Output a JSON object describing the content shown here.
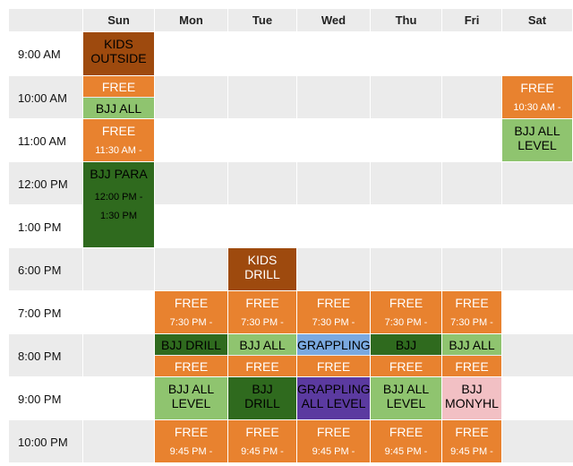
{
  "days": [
    "Sun",
    "Mon",
    "Tue",
    "Wed",
    "Thu",
    "Fri",
    "Sat"
  ],
  "times": [
    "9:00 AM",
    "10:00 AM",
    "11:00 AM",
    "12:00 PM",
    "1:00 PM",
    "6:00 PM",
    "7:00 PM",
    "8:00 PM",
    "9:00 PM",
    "10:00 PM"
  ],
  "colors": {
    "orange": "#e8822f",
    "brown": "#9e4a0e",
    "light_green": "#8fc46f",
    "dark_green": "#2f6a1e",
    "blue": "#7aa9e0",
    "purple": "#5b3aa0",
    "pink": "#f2c0c4",
    "header_gray": "#ebebeb"
  },
  "events": [
    {
      "id": "sun-kids-outside",
      "day": "Sun",
      "start": "9:00 AM",
      "end": "10:00 AM",
      "title": "KIDS\nOUTSIDE",
      "sub": "",
      "color": "brown",
      "text": "dark"
    },
    {
      "id": "sun-free-10",
      "day": "Sun",
      "start": "10:00 AM",
      "end": "10:30 AM",
      "title": "FREE",
      "sub": "",
      "color": "orange",
      "text": "light"
    },
    {
      "id": "sun-bjj-all",
      "day": "Sun",
      "start": "10:30 AM",
      "end": "11:00 AM",
      "title": "BJJ ALL",
      "sub": "",
      "color": "light_green",
      "text": "dark"
    },
    {
      "id": "sun-free-11",
      "day": "Sun",
      "start": "11:00 AM",
      "end": "12:00 PM",
      "title": "FREE",
      "sub": "11:30 AM -",
      "color": "orange",
      "text": "light"
    },
    {
      "id": "sun-bjj-para",
      "day": "Sun",
      "start": "12:00 PM",
      "end": "6:00 PM",
      "title": "BJJ PARA",
      "sub": "12:00 PM -\n1:30 PM",
      "color": "dark_green",
      "text": "dark"
    },
    {
      "id": "sat-free-10",
      "day": "Sat",
      "start": "10:00 AM",
      "end": "11:00 AM",
      "title": "FREE",
      "sub": "10:30 AM -",
      "color": "orange",
      "text": "light"
    },
    {
      "id": "sat-bjj-all-level",
      "day": "Sat",
      "start": "11:00 AM",
      "end": "12:00 PM",
      "title": "BJJ ALL\nLEVEL",
      "sub": "",
      "color": "light_green",
      "text": "dark"
    },
    {
      "id": "tue-kids-drill",
      "day": "Tue",
      "start": "6:00 PM",
      "end": "7:00 PM",
      "title": "KIDS\nDRILL",
      "sub": "",
      "color": "brown",
      "text": "light"
    },
    {
      "id": "mon-free-7",
      "day": "Mon",
      "start": "7:00 PM",
      "end": "8:00 PM",
      "title": "FREE",
      "sub": "7:30 PM -",
      "color": "orange",
      "text": "light"
    },
    {
      "id": "tue-free-7",
      "day": "Tue",
      "start": "7:00 PM",
      "end": "8:00 PM",
      "title": "FREE",
      "sub": "7:30 PM -",
      "color": "orange",
      "text": "light"
    },
    {
      "id": "wed-free-7",
      "day": "Wed",
      "start": "7:00 PM",
      "end": "8:00 PM",
      "title": "FREE",
      "sub": "7:30 PM -",
      "color": "orange",
      "text": "light"
    },
    {
      "id": "thu-free-7",
      "day": "Thu",
      "start": "7:00 PM",
      "end": "8:00 PM",
      "title": "FREE",
      "sub": "7:30 PM -",
      "color": "orange",
      "text": "light"
    },
    {
      "id": "fri-free-7",
      "day": "Fri",
      "start": "7:00 PM",
      "end": "8:00 PM",
      "title": "FREE",
      "sub": "7:30 PM -",
      "color": "orange",
      "text": "light"
    },
    {
      "id": "mon-bjj-drill",
      "day": "Mon",
      "start": "8:00 PM",
      "end": "8:30 PM",
      "title": "BJJ DRILL",
      "sub": "",
      "color": "dark_green",
      "text": "dark"
    },
    {
      "id": "tue-bjj-all",
      "day": "Tue",
      "start": "8:00 PM",
      "end": "8:30 PM",
      "title": "BJJ ALL",
      "sub": "",
      "color": "light_green",
      "text": "dark"
    },
    {
      "id": "wed-grappling",
      "day": "Wed",
      "start": "8:00 PM",
      "end": "8:30 PM",
      "title": "GRAPPLING",
      "sub": "",
      "color": "blue",
      "text": "dark"
    },
    {
      "id": "thu-bjj",
      "day": "Thu",
      "start": "8:00 PM",
      "end": "8:30 PM",
      "title": "BJJ",
      "sub": "",
      "color": "dark_green",
      "text": "dark"
    },
    {
      "id": "fri-bjj-all",
      "day": "Fri",
      "start": "8:00 PM",
      "end": "8:30 PM",
      "title": "BJJ ALL",
      "sub": "",
      "color": "light_green",
      "text": "dark"
    },
    {
      "id": "mon-free-830",
      "day": "Mon",
      "start": "8:30 PM",
      "end": "9:00 PM",
      "title": "FREE",
      "sub": "",
      "color": "orange",
      "text": "light"
    },
    {
      "id": "tue-free-830",
      "day": "Tue",
      "start": "8:30 PM",
      "end": "9:00 PM",
      "title": "FREE",
      "sub": "",
      "color": "orange",
      "text": "light"
    },
    {
      "id": "wed-free-830",
      "day": "Wed",
      "start": "8:30 PM",
      "end": "9:00 PM",
      "title": "FREE",
      "sub": "",
      "color": "orange",
      "text": "light"
    },
    {
      "id": "thu-free-830",
      "day": "Thu",
      "start": "8:30 PM",
      "end": "9:00 PM",
      "title": "FREE",
      "sub": "",
      "color": "orange",
      "text": "light"
    },
    {
      "id": "fri-free-830",
      "day": "Fri",
      "start": "8:30 PM",
      "end": "9:00 PM",
      "title": "FREE",
      "sub": "",
      "color": "orange",
      "text": "light"
    },
    {
      "id": "mon-bjj-all-level",
      "day": "Mon",
      "start": "9:00 PM",
      "end": "10:00 PM",
      "title": "BJJ ALL\nLEVEL",
      "sub": "",
      "color": "light_green",
      "text": "dark"
    },
    {
      "id": "tue-bjj-drill",
      "day": "Tue",
      "start": "9:00 PM",
      "end": "10:00 PM",
      "title": "BJJ\nDRILL",
      "sub": "",
      "color": "dark_green",
      "text": "dark"
    },
    {
      "id": "wed-grappling-all",
      "day": "Wed",
      "start": "9:00 PM",
      "end": "10:00 PM",
      "title": "GRAPPLING\nALL LEVEL",
      "sub": "",
      "color": "purple",
      "text": "dark"
    },
    {
      "id": "thu-bjj-all-level",
      "day": "Thu",
      "start": "9:00 PM",
      "end": "10:00 PM",
      "title": "BJJ ALL\nLEVEL",
      "sub": "",
      "color": "light_green",
      "text": "dark"
    },
    {
      "id": "fri-bjj-monyhl",
      "day": "Fri",
      "start": "9:00 PM",
      "end": "10:00 PM",
      "title": "BJJ\nMONYHL",
      "sub": "",
      "color": "pink",
      "text": "dark"
    },
    {
      "id": "mon-free-10",
      "day": "Mon",
      "start": "10:00 PM",
      "end": "11:00 PM",
      "title": "FREE",
      "sub": "9:45 PM -",
      "color": "orange",
      "text": "light"
    },
    {
      "id": "tue-free-10",
      "day": "Tue",
      "start": "10:00 PM",
      "end": "11:00 PM",
      "title": "FREE",
      "sub": "9:45 PM -",
      "color": "orange",
      "text": "light"
    },
    {
      "id": "wed-free-10",
      "day": "Wed",
      "start": "10:00 PM",
      "end": "11:00 PM",
      "title": "FREE",
      "sub": "9:45 PM -",
      "color": "orange",
      "text": "light"
    },
    {
      "id": "thu-free-10",
      "day": "Thu",
      "start": "10:00 PM",
      "end": "11:00 PM",
      "title": "FREE",
      "sub": "9:45 PM -",
      "color": "orange",
      "text": "light"
    },
    {
      "id": "fri-free-10",
      "day": "Fri",
      "start": "10:00 PM",
      "end": "11:00 PM",
      "title": "FREE",
      "sub": "9:45 PM -",
      "color": "orange",
      "text": "light"
    }
  ]
}
